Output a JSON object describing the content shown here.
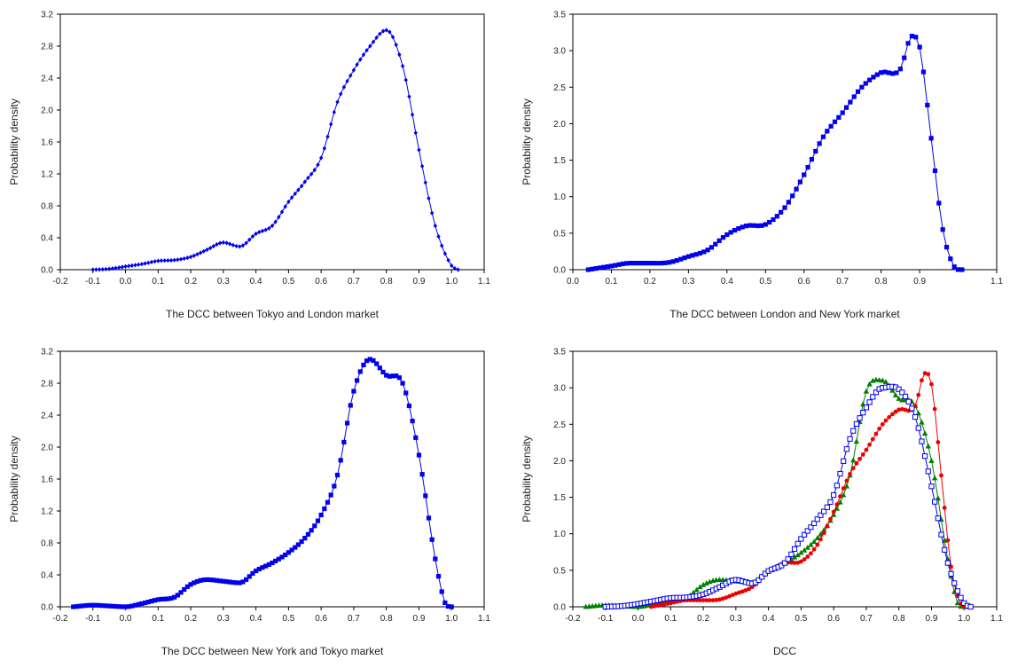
{
  "chart_data": [
    {
      "type": "line",
      "xlabel": "The DCC between Tokyo and London market",
      "ylabel": "Probability density",
      "xlim": [
        -0.2,
        1.1
      ],
      "ylim": [
        0,
        3.2
      ],
      "xticks": [
        "-0.2",
        "-0.1",
        "0.0",
        "0.1",
        "0.2",
        "0.3",
        "0.4",
        "0.5",
        "0.6",
        "0.7",
        "0.8",
        "0.9",
        "1.0",
        "1.1"
      ],
      "yticks": [
        "0.0",
        "0.4",
        "0.8",
        "1.2",
        "1.6",
        "2.0",
        "2.4",
        "2.8",
        "3.2"
      ],
      "grid": false,
      "series": [
        {
          "color": "#0000ee",
          "marker": "diamond",
          "x": [
            -0.1,
            -0.05,
            0.0,
            0.05,
            0.1,
            0.15,
            0.2,
            0.25,
            0.3,
            0.35,
            0.4,
            0.45,
            0.5,
            0.55,
            0.6,
            0.65,
            0.7,
            0.75,
            0.8,
            0.85,
            0.9,
            0.95,
            1.0,
            1.02
          ],
          "y": [
            0.0,
            0.01,
            0.04,
            0.07,
            0.11,
            0.12,
            0.16,
            0.25,
            0.34,
            0.29,
            0.45,
            0.55,
            0.85,
            1.1,
            1.4,
            2.1,
            2.5,
            2.8,
            3.0,
            2.55,
            1.5,
            0.55,
            0.05,
            0.0
          ]
        }
      ]
    },
    {
      "type": "line",
      "xlabel": "The DCC between London and New York market",
      "ylabel": "Probability density",
      "xlim": [
        0.0,
        1.1
      ],
      "ylim": [
        0,
        3.5
      ],
      "xticks": [
        "0.0",
        "0.1",
        "0.2",
        "0.3",
        "0.4",
        "0.5",
        "0.6",
        "0.7",
        "0.8",
        "0.9",
        "1.1"
      ],
      "yticks": [
        "0.0",
        "0.5",
        "1.0",
        "1.5",
        "2.0",
        "2.5",
        "3.0",
        "3.5"
      ],
      "grid": false,
      "series": [
        {
          "color": "#0000ee",
          "marker": "square",
          "x": [
            0.04,
            0.1,
            0.15,
            0.2,
            0.25,
            0.3,
            0.35,
            0.4,
            0.45,
            0.5,
            0.55,
            0.6,
            0.65,
            0.7,
            0.75,
            0.8,
            0.85,
            0.88,
            0.9,
            0.93,
            0.96,
            0.99,
            1.01
          ],
          "y": [
            0.0,
            0.05,
            0.09,
            0.09,
            0.1,
            0.18,
            0.27,
            0.48,
            0.6,
            0.62,
            0.85,
            1.3,
            1.82,
            2.15,
            2.5,
            2.7,
            2.75,
            3.2,
            3.05,
            1.8,
            0.55,
            0.04,
            0.0
          ]
        }
      ]
    },
    {
      "type": "line",
      "xlabel": "The DCC between New York and Tokyo market",
      "ylabel": "Probability density",
      "xlim": [
        -0.2,
        1.1
      ],
      "ylim": [
        0,
        3.2
      ],
      "xticks": [
        "-0.2",
        "-0.1",
        "0.0",
        "0.1",
        "0.2",
        "0.3",
        "0.4",
        "0.5",
        "0.6",
        "0.7",
        "0.8",
        "0.9",
        "1.0",
        "1.1"
      ],
      "yticks": [
        "0.0",
        "0.4",
        "0.8",
        "1.2",
        "1.6",
        "2.0",
        "2.4",
        "2.8",
        "3.2"
      ],
      "grid": false,
      "series": [
        {
          "color": "#0000ee",
          "marker": "square",
          "x": [
            -0.16,
            -0.1,
            -0.05,
            0.0,
            0.05,
            0.1,
            0.15,
            0.2,
            0.25,
            0.3,
            0.35,
            0.4,
            0.45,
            0.5,
            0.55,
            0.6,
            0.65,
            0.7,
            0.75,
            0.8,
            0.85,
            0.9,
            0.95,
            0.98,
            1.0
          ],
          "y": [
            0.0,
            0.02,
            0.01,
            0.0,
            0.04,
            0.09,
            0.12,
            0.28,
            0.34,
            0.32,
            0.3,
            0.45,
            0.55,
            0.68,
            0.86,
            1.15,
            1.65,
            2.7,
            3.1,
            2.9,
            2.8,
            1.9,
            0.6,
            0.05,
            0.0
          ]
        }
      ]
    },
    {
      "type": "line",
      "xlabel": "DCC",
      "ylabel": "Probability density",
      "xlim": [
        -0.2,
        1.1
      ],
      "ylim": [
        0,
        3.5
      ],
      "xticks": [
        "-0.2",
        "-0.1",
        "0.0",
        "0.1",
        "0.2",
        "0.3",
        "0.4",
        "0.5",
        "0.6",
        "0.7",
        "0.8",
        "0.9",
        "1.0",
        "1.1"
      ],
      "yticks": [
        "0.0",
        "0.5",
        "1.0",
        "1.5",
        "2.0",
        "2.5",
        "3.0",
        "3.5"
      ],
      "grid": false,
      "series": [
        {
          "color": "#008000",
          "marker": "triangle",
          "x": [
            -0.16,
            -0.1,
            -0.05,
            0.0,
            0.05,
            0.1,
            0.15,
            0.2,
            0.25,
            0.3,
            0.35,
            0.4,
            0.45,
            0.5,
            0.55,
            0.6,
            0.65,
            0.7,
            0.75,
            0.8,
            0.85,
            0.9,
            0.95,
            0.98,
            1.0
          ],
          "y": [
            0.0,
            0.02,
            0.01,
            0.0,
            0.04,
            0.1,
            0.13,
            0.3,
            0.37,
            0.35,
            0.33,
            0.49,
            0.6,
            0.74,
            0.94,
            1.26,
            1.8,
            2.95,
            3.1,
            2.85,
            2.75,
            2.0,
            0.65,
            0.05,
            0.0
          ]
        },
        {
          "color": "#ee0000",
          "marker": "circle",
          "x": [
            0.04,
            0.1,
            0.15,
            0.2,
            0.25,
            0.3,
            0.35,
            0.4,
            0.45,
            0.5,
            0.55,
            0.6,
            0.65,
            0.7,
            0.75,
            0.8,
            0.85,
            0.88,
            0.9,
            0.93,
            0.96,
            0.99,
            1.01
          ],
          "y": [
            0.0,
            0.05,
            0.09,
            0.09,
            0.1,
            0.18,
            0.27,
            0.48,
            0.6,
            0.62,
            0.85,
            1.3,
            1.82,
            2.15,
            2.5,
            2.7,
            2.75,
            3.2,
            3.05,
            1.8,
            0.55,
            0.04,
            0.0
          ]
        },
        {
          "color": "#0000ee",
          "marker": "open-square",
          "x": [
            -0.1,
            -0.05,
            0.0,
            0.05,
            0.1,
            0.15,
            0.2,
            0.25,
            0.3,
            0.35,
            0.4,
            0.45,
            0.5,
            0.55,
            0.6,
            0.65,
            0.7,
            0.75,
            0.8,
            0.85,
            0.9,
            0.95,
            1.0,
            1.02
          ],
          "y": [
            0.0,
            0.01,
            0.04,
            0.08,
            0.12,
            0.13,
            0.17,
            0.27,
            0.37,
            0.32,
            0.49,
            0.6,
            0.93,
            1.2,
            1.53,
            2.3,
            2.73,
            3.0,
            2.98,
            2.6,
            1.65,
            0.6,
            0.05,
            0.0
          ]
        }
      ]
    }
  ]
}
